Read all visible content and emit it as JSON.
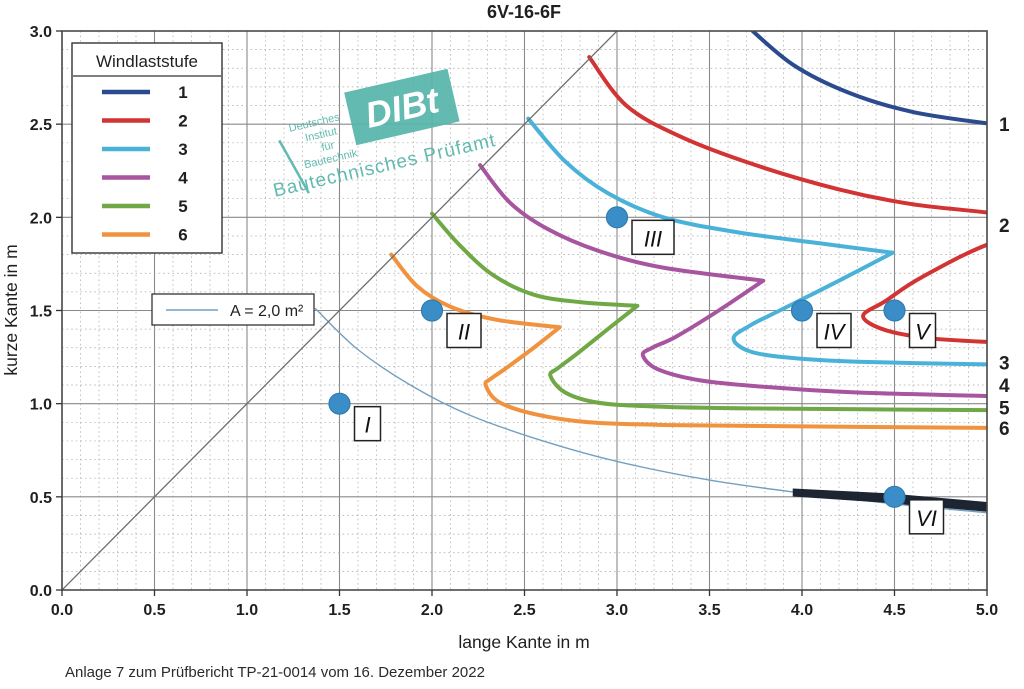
{
  "title": "6V-16-6F",
  "caption": "Anlage 7 zum Prüfbericht TP-21-0014 vom 16. Dezember 2022",
  "watermark": {
    "color": "#57b5ac",
    "small_lines": [
      "Deutsches",
      "Institut",
      "für",
      "Bautechnik"
    ],
    "box_text": "DIBt",
    "subtitle": "Bautechnisches Prüfamt"
  },
  "legend": {
    "title": "Windlaststufe",
    "items": [
      {
        "label": "1",
        "color": "#2c4b8e"
      },
      {
        "label": "2",
        "color": "#d23434"
      },
      {
        "label": "3",
        "color": "#4ab2d8"
      },
      {
        "label": "4",
        "color": "#a7559e"
      },
      {
        "label": "5",
        "color": "#70a845"
      },
      {
        "label": "6",
        "color": "#f0923e"
      }
    ]
  },
  "area_legend": {
    "label": "A = 2,0 m²",
    "color": "#74a0c0"
  },
  "chart_data": {
    "type": "line",
    "title": "6V-16-6F",
    "xlabel": "lange Kante in m",
    "ylabel": "kurze Kante in m",
    "xlim": [
      0,
      5
    ],
    "ylim": [
      0,
      3
    ],
    "xticks": [
      0.0,
      0.5,
      1.0,
      1.5,
      2.0,
      2.5,
      3.0,
      3.5,
      4.0,
      4.5,
      5.0
    ],
    "yticks": [
      0.0,
      0.5,
      1.0,
      1.5,
      2.0,
      2.5,
      3.0
    ],
    "minor_step": 0.1,
    "grid": "major-solid minor-dotted",
    "legend_position": "upper-left",
    "series": [
      {
        "name": "Windlaststufe 1",
        "color": "#2c4b8e",
        "width": 4,
        "segments": [
          [
            [
              3.7,
              3.03
            ],
            [
              3.95,
              2.82
            ],
            [
              4.25,
              2.67
            ],
            [
              4.6,
              2.565
            ],
            [
              5.03,
              2.5
            ]
          ]
        ]
      },
      {
        "name": "Windlaststufe 2",
        "color": "#d23434",
        "width": 4,
        "segments": [
          [
            [
              2.85,
              2.86
            ],
            [
              3.05,
              2.6
            ],
            [
              3.35,
              2.43
            ],
            [
              3.75,
              2.28
            ],
            [
              4.2,
              2.15
            ],
            [
              4.6,
              2.07
            ],
            [
              5.05,
              2.02
            ],
            [
              5.5,
              1.95
            ],
            [
              5.05,
              1.87
            ],
            [
              4.65,
              1.68
            ],
            [
              4.45,
              1.55
            ],
            [
              4.33,
              1.47
            ],
            [
              4.45,
              1.395
            ],
            [
              4.7,
              1.35
            ],
            [
              5.03,
              1.33
            ]
          ]
        ]
      },
      {
        "name": "Windlaststufe 3",
        "color": "#4ab2d8",
        "width": 4,
        "segments": [
          [
            [
              2.52,
              2.53
            ],
            [
              2.72,
              2.3
            ],
            [
              2.95,
              2.13
            ],
            [
              3.25,
              2.0
            ],
            [
              3.65,
              1.92
            ],
            [
              4.1,
              1.86
            ],
            [
              4.49,
              1.81
            ]
          ],
          [
            [
              4.49,
              1.81
            ],
            [
              4.2,
              1.66
            ],
            [
              3.9,
              1.51
            ],
            [
              3.72,
              1.42
            ],
            [
              3.63,
              1.35
            ],
            [
              3.72,
              1.28
            ],
            [
              3.95,
              1.245
            ],
            [
              4.3,
              1.225
            ],
            [
              5.03,
              1.21
            ]
          ]
        ]
      },
      {
        "name": "Windlaststufe 4",
        "color": "#a7559e",
        "width": 4,
        "segments": [
          [
            [
              2.26,
              2.28
            ],
            [
              2.42,
              2.08
            ],
            [
              2.62,
              1.94
            ],
            [
              2.9,
              1.82
            ],
            [
              3.25,
              1.73
            ],
            [
              3.79,
              1.66
            ]
          ],
          [
            [
              3.79,
              1.66
            ],
            [
              3.55,
              1.5
            ],
            [
              3.32,
              1.36
            ],
            [
              3.19,
              1.3
            ],
            [
              3.14,
              1.26
            ],
            [
              3.22,
              1.185
            ],
            [
              3.45,
              1.125
            ],
            [
              3.8,
              1.09
            ],
            [
              4.3,
              1.06
            ],
            [
              5.03,
              1.04
            ]
          ]
        ]
      },
      {
        "name": "Windlaststufe 5",
        "color": "#70a845",
        "width": 4,
        "segments": [
          [
            [
              2.0,
              2.02
            ],
            [
              2.15,
              1.85
            ],
            [
              2.33,
              1.69
            ],
            [
              2.55,
              1.585
            ],
            [
              2.8,
              1.545
            ],
            [
              3.11,
              1.525
            ]
          ],
          [
            [
              3.11,
              1.525
            ],
            [
              2.95,
              1.4
            ],
            [
              2.78,
              1.265
            ],
            [
              2.68,
              1.19
            ],
            [
              2.64,
              1.15
            ],
            [
              2.72,
              1.06
            ],
            [
              2.9,
              1.005
            ],
            [
              3.2,
              0.985
            ],
            [
              3.7,
              0.975
            ],
            [
              5.03,
              0.965
            ]
          ]
        ]
      },
      {
        "name": "Windlaststufe 6",
        "color": "#f0923e",
        "width": 4,
        "segments": [
          [
            [
              1.78,
              1.8
            ],
            [
              1.92,
              1.63
            ],
            [
              2.1,
              1.52
            ],
            [
              2.35,
              1.45
            ],
            [
              2.69,
              1.41
            ]
          ],
          [
            [
              2.69,
              1.41
            ],
            [
              2.55,
              1.3
            ],
            [
              2.4,
              1.19
            ],
            [
              2.32,
              1.135
            ],
            [
              2.29,
              1.1
            ],
            [
              2.36,
              1.01
            ],
            [
              2.55,
              0.945
            ],
            [
              2.85,
              0.9
            ],
            [
              3.3,
              0.885
            ],
            [
              4.0,
              0.878
            ],
            [
              5.03,
              0.87
            ]
          ]
        ]
      },
      {
        "name": "A = 2,0 m²",
        "color": "#74a0c0",
        "width": 1.4,
        "segments": [
          [
            [
              1.37,
              1.51
            ],
            [
              1.6,
              1.29
            ],
            [
              1.9,
              1.09
            ],
            [
              2.2,
              0.94
            ],
            [
              2.6,
              0.8
            ],
            [
              3.0,
              0.69
            ],
            [
              3.5,
              0.59
            ],
            [
              4.0,
              0.52
            ],
            [
              4.5,
              0.462
            ],
            [
              5.0,
              0.415
            ]
          ]
        ]
      },
      {
        "name": "Diagonale",
        "color": "#6e6e6e",
        "width": 1.3,
        "segments": [
          [
            [
              0,
              0
            ],
            [
              3.02,
              3.02
            ]
          ]
        ]
      }
    ],
    "band": {
      "name": "Band VI",
      "color": "#1d2432",
      "polygon": [
        [
          3.95,
          0.545
        ],
        [
          4.45,
          0.52
        ],
        [
          5.0,
          0.472
        ],
        [
          5.0,
          0.42
        ],
        [
          4.45,
          0.468
        ],
        [
          3.95,
          0.502
        ]
      ]
    },
    "points": [
      {
        "label": "I",
        "x": 1.5,
        "y": 1.0
      },
      {
        "label": "II",
        "x": 2.0,
        "y": 1.5
      },
      {
        "label": "III",
        "x": 3.0,
        "y": 2.0
      },
      {
        "label": "IV",
        "x": 4.0,
        "y": 1.5
      },
      {
        "label": "V",
        "x": 4.5,
        "y": 1.5
      },
      {
        "label": "VI",
        "x": 4.5,
        "y": 0.5
      }
    ],
    "point_color": "#3b8dc8",
    "point_edge": "#2f7cb0",
    "right_labels": [
      {
        "text": "1",
        "y": 2.5
      },
      {
        "text": "2",
        "y": 1.96
      },
      {
        "text": "3",
        "y": 1.22
      },
      {
        "text": "4",
        "y": 1.1
      },
      {
        "text": "5",
        "y": 0.98
      },
      {
        "text": "6",
        "y": 0.87
      }
    ]
  }
}
